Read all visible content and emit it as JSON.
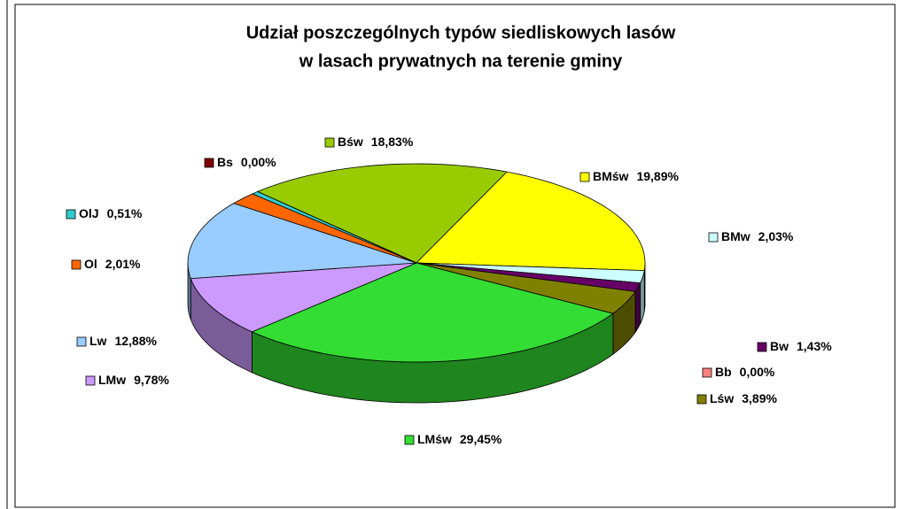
{
  "chart_data": {
    "type": "pie",
    "title": [
      "Udział poszczególnych typów siedliskowych lasów",
      "w lasach prywatnych na terenie gminy"
    ],
    "categories": [
      "Bśw",
      "BMśw",
      "BMw",
      "Bw",
      "Bb",
      "Lśw",
      "LMśw",
      "LMw",
      "Lw",
      "Ol",
      "OlJ",
      "Bs"
    ],
    "values": [
      18.83,
      19.89,
      2.03,
      1.43,
      0.0,
      3.89,
      29.45,
      9.78,
      12.88,
      2.01,
      0.51,
      0.0
    ],
    "value_labels": [
      "18,83%",
      "19,89%",
      "2,03%",
      "1,43%",
      "0,00%",
      "3,89%",
      "29,45%",
      "9,78%",
      "12,88%",
      "2,01%",
      "0,51%",
      "0,00%"
    ],
    "colors": [
      "#99cc00",
      "#ffff00",
      "#ccffff",
      "#660066",
      "#ff8080",
      "#808000",
      "#33dd33",
      "#cc99ff",
      "#99ccff",
      "#ff6600",
      "#33cccc",
      "#800000"
    ]
  }
}
